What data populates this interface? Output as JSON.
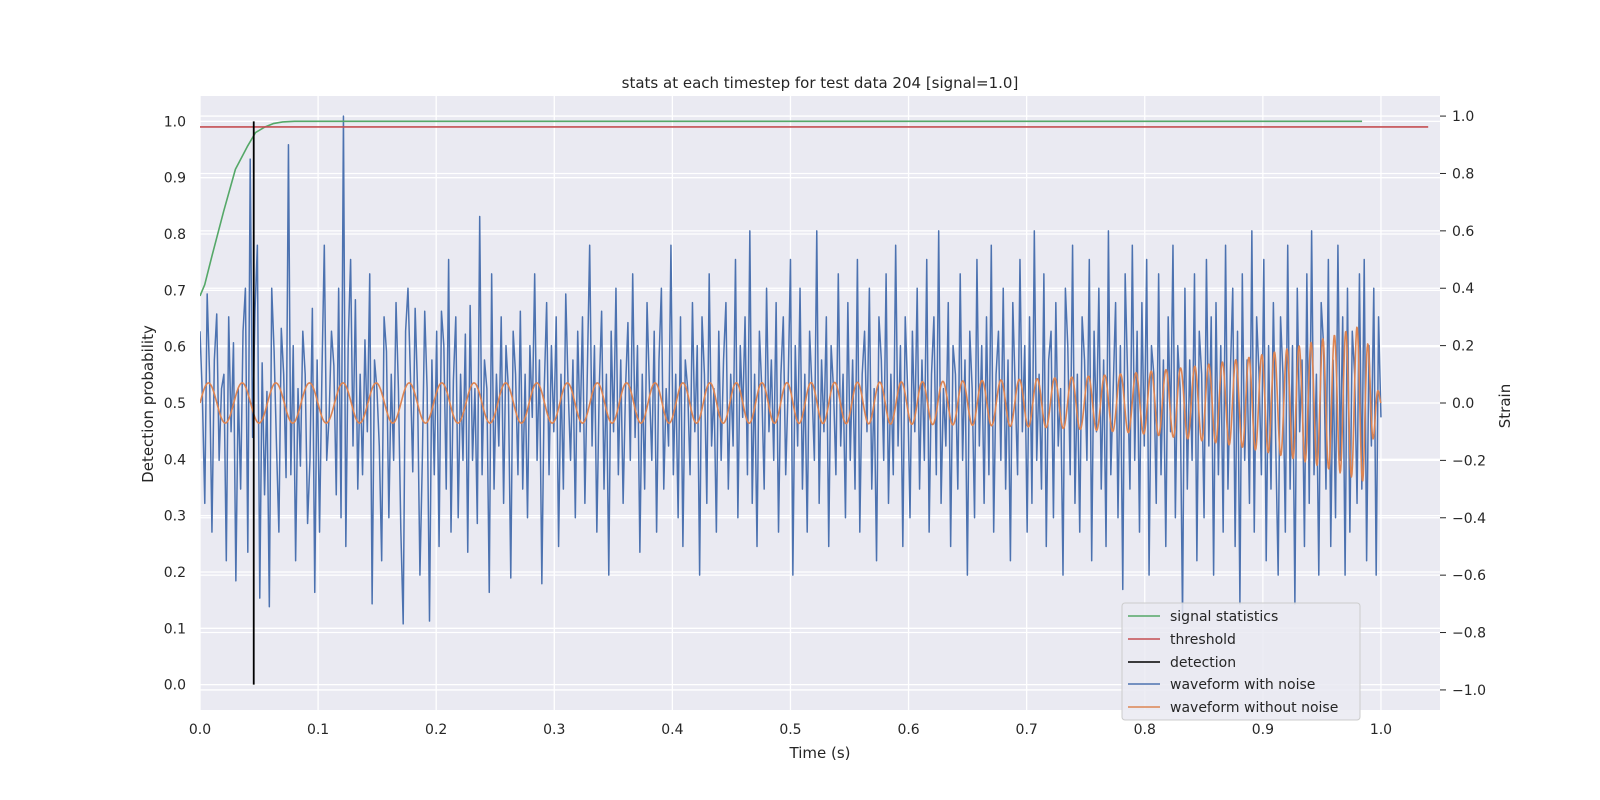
{
  "chart_data": {
    "type": "line",
    "title": "stats at each timestep for test data 204 [signal=1.0]",
    "xlabel": "Time (s)",
    "ylabel_left": "Detection probability",
    "ylabel_right": "Strain",
    "xlim": [
      0.0,
      1.05
    ],
    "ylim_left": [
      -0.045,
      1.045
    ],
    "ylim_right": [
      -1.07,
      1.07
    ],
    "x_ticks": [
      "0.0",
      "0.1",
      "0.2",
      "0.3",
      "0.4",
      "0.5",
      "0.6",
      "0.7",
      "0.8",
      "0.9",
      "1.0"
    ],
    "y_ticks_left": [
      "0.0",
      "0.1",
      "0.2",
      "0.3",
      "0.4",
      "0.5",
      "0.6",
      "0.7",
      "0.8",
      "0.9",
      "1.0"
    ],
    "y_ticks_right": [
      "−1.0",
      "−0.8",
      "−0.6",
      "−0.4",
      "−0.2",
      "0.0",
      "0.2",
      "0.4",
      "0.6",
      "0.8",
      "1.0"
    ],
    "grid": true,
    "legend_position": "lower-right",
    "series": [
      {
        "name": "signal statistics",
        "axis": "left",
        "color": "#55a868",
        "x": [
          0.0,
          0.004,
          0.01,
          0.02,
          0.03,
          0.04,
          0.047,
          0.055,
          0.062,
          0.07,
          0.08,
          0.1,
          0.2,
          0.4,
          0.6,
          0.8,
          0.984
        ],
        "y": [
          0.69,
          0.71,
          0.76,
          0.84,
          0.915,
          0.955,
          0.98,
          0.99,
          0.996,
          0.999,
          1.0,
          1.0,
          1.0,
          1.0,
          1.0,
          1.0,
          1.0
        ]
      },
      {
        "name": "threshold",
        "axis": "left",
        "color": "#c44e52",
        "x": [
          0.0,
          1.04
        ],
        "y": [
          0.99,
          0.99
        ]
      },
      {
        "name": "detection",
        "axis": "left",
        "color": "#000000",
        "x": [
          0.0455,
          0.0455
        ],
        "y": [
          0.0,
          1.0
        ]
      },
      {
        "name": "waveform with noise",
        "axis": "right",
        "color": "#4c72b0",
        "x_start": 0.0,
        "x_end": 1.0,
        "y": [
          0.25,
          0.02,
          -0.35,
          0.38,
          0.1,
          -0.45,
          0.15,
          0.31,
          -0.2,
          0.05,
          0.1,
          -0.55,
          0.3,
          -0.1,
          0.21,
          -0.62,
          0.05,
          -0.3,
          0.25,
          0.4,
          -0.52,
          0.85,
          -0.12,
          0.32,
          0.55,
          -0.68,
          0.14,
          -0.32,
          0.04,
          -0.71,
          0.4,
          0.18,
          -0.15,
          -0.45,
          0.26,
          0.1,
          -0.26,
          0.9,
          -0.25,
          0.2,
          -0.55,
          0.05,
          -0.22,
          0.25,
          0.1,
          -0.42,
          -0.2,
          0.33,
          -0.66,
          0.15,
          -0.45,
          0.1,
          0.55,
          -0.2,
          -0.05,
          0.25,
          0.13,
          -0.32,
          0.4,
          -0.4,
          1.0,
          -0.5,
          0.21,
          0.5,
          -0.15,
          0.36,
          -0.3,
          0.1,
          -0.25,
          0.22,
          -0.1,
          0.45,
          -0.7,
          0.15,
          0.05,
          -0.15,
          -0.55,
          0.3,
          0.18,
          -0.4,
          0.1,
          -0.2,
          0.35,
          0.05,
          -0.44,
          -0.77,
          0.25,
          0.4,
          0.1,
          -0.24,
          0.33,
          0.05,
          -0.6,
          -0.2,
          0.32,
          0.05,
          -0.76,
          0.15,
          -0.25,
          0.25,
          -0.5,
          0.32,
          0.2,
          -0.3,
          0.5,
          -0.45,
          0.08,
          0.3,
          -0.4,
          0.1,
          -0.2,
          0.24,
          -0.52,
          0.34,
          -0.2,
          0.05,
          -0.42,
          0.65,
          -0.25,
          0.15,
          0.05,
          -0.66,
          0.45,
          -0.3,
          0.1,
          -0.15,
          0.3,
          -0.35,
          0.2,
          0.05,
          -0.61,
          0.25,
          0.1,
          -0.25,
          0.32,
          -0.3,
          0.1,
          -0.4,
          0.2,
          -0.05,
          0.45,
          -0.2,
          0.15,
          -0.63,
          0.05,
          0.35,
          -0.25,
          0.2,
          -0.1,
          0.3,
          -0.5,
          0.1,
          -0.3,
          0.38,
          0.05,
          -0.2,
          0.15,
          -0.4,
          0.25,
          -0.1,
          0.3,
          -0.35,
          0.1,
          0.55,
          -0.15,
          0.2,
          -0.45,
          0.05,
          0.32,
          -0.3,
          0.1,
          -0.6,
          0.25,
          -0.1,
          0.4,
          -0.25,
          0.15,
          -0.35,
          0.05,
          0.28,
          -0.2,
          0.45,
          -0.12,
          0.2,
          -0.52,
          0.1,
          -0.3,
          0.35,
          0.05,
          -0.2,
          0.25,
          -0.45,
          0.15,
          0.4,
          -0.3,
          0.05,
          -0.15,
          0.55,
          -0.25,
          0.1,
          -0.4,
          0.3,
          -0.5,
          0.15,
          0.05,
          -0.25,
          0.35,
          -0.1,
          0.2,
          -0.6,
          0.3,
          0.1,
          -0.35,
          0.45,
          -0.15,
          0.05,
          -0.45,
          0.25,
          -0.2,
          0.15,
          0.35,
          -0.3,
          0.1,
          -0.15,
          0.5,
          -0.4,
          0.2,
          -0.05,
          0.3,
          -0.25,
          0.6,
          -0.35,
          0.1,
          -0.5,
          0.25,
          0.05,
          -0.3,
          0.4,
          -0.1,
          0.15,
          -0.2,
          0.35,
          -0.45,
          0.1,
          0.3,
          -0.25,
          0.05,
          0.5,
          -0.6,
          0.2,
          -0.15,
          0.4,
          -0.3,
          0.1,
          -0.45,
          0.25,
          0.05,
          -0.2,
          0.6,
          -0.35,
          0.15,
          -0.1,
          0.3,
          -0.5,
          0.2,
          0.05,
          -0.25,
          0.45,
          -0.15,
          0.1,
          -0.4,
          0.35,
          -0.2,
          0.15,
          -0.3,
          0.5,
          -0.45,
          0.1,
          0.25,
          -0.1,
          0.4,
          -0.3,
          0.05,
          -0.55,
          0.3,
          0.15,
          -0.2,
          0.45,
          -0.35,
          0.1,
          -0.25,
          0.55,
          -0.15,
          0.2,
          -0.5,
          0.3,
          0.05,
          -0.4,
          0.25,
          -0.1,
          0.4,
          -0.3,
          0.15,
          -0.2,
          0.5,
          -0.45,
          0.1,
          0.3,
          -0.25,
          0.6,
          -0.35,
          0.05,
          -0.15,
          0.35,
          -0.5,
          0.2,
          0.1,
          -0.3,
          0.45,
          -0.2,
          0.15,
          -0.6,
          0.25,
          0.05,
          -0.4,
          0.5,
          -0.15,
          0.2,
          -0.35,
          0.3,
          -0.25,
          0.55,
          -0.45,
          0.1,
          0.25,
          -0.2,
          0.4,
          -0.3,
          0.15,
          -0.55,
          0.35,
          0.05,
          -0.25,
          0.5,
          -0.1,
          0.2,
          -0.45,
          0.3,
          -0.35,
          0.6,
          -0.2,
          0.1,
          -0.3,
          0.45,
          -0.5,
          0.15,
          0.25,
          -0.4,
          0.35,
          -0.15,
          0.05,
          -0.6,
          0.4,
          0.2,
          -0.25,
          0.55,
          -0.35,
          0.1,
          -0.45,
          0.3,
          0.15,
          -0.2,
          0.5,
          -0.55,
          0.25,
          -0.1,
          0.4,
          -0.3,
          0.15,
          -0.5,
          0.6,
          -0.25,
          0.05,
          0.35,
          -0.4,
          0.2,
          -0.65,
          0.45,
          0.1,
          -0.3,
          0.55,
          -0.2,
          0.25,
          -0.45,
          0.35,
          -0.15,
          0.5,
          -0.6,
          0.2,
          0.1,
          -0.35,
          0.45,
          -0.25,
          0.15,
          -0.5,
          0.3,
          -0.1,
          0.55,
          -0.4,
          0.2,
          0.05,
          -0.75,
          0.4,
          -0.3,
          0.15,
          -0.2,
          0.45,
          -0.55,
          0.25,
          0.1,
          -0.4,
          0.5,
          -0.15,
          0.3,
          -0.6,
          0.35,
          -0.25,
          0.2,
          -0.45,
          0.55,
          -0.3,
          0.1,
          0.4,
          -0.5,
          0.25,
          -0.7,
          0.45,
          -0.2,
          0.15,
          -0.35,
          0.6,
          -0.45,
          0.3,
          0.1,
          -0.25,
          0.5,
          -0.55,
          0.2,
          -0.3,
          0.35,
          -0.15,
          -0.6,
          0.3,
          0.1,
          -0.45,
          0.55,
          -0.3,
          0.2,
          -0.7,
          0.4,
          -0.1,
          0.15,
          -0.5,
          0.45,
          -0.35,
          0.6,
          -0.25,
          0.1,
          -0.6,
          0.35,
          0.2,
          -0.3,
          0.5,
          -0.5,
          0.15,
          -0.4,
          0.55,
          -0.2,
          0.3,
          -0.6,
          0.4,
          -0.45,
          0.25,
          0.1,
          -0.35,
          0.45,
          -0.3,
          0.5,
          -0.55,
          0.2,
          -0.15,
          0.4,
          -0.6,
          0.3,
          -0.05
        ]
      },
      {
        "name": "waveform without noise",
        "axis": "right",
        "color": "#dd8452",
        "x_start": 0.0,
        "x_end": 1.0,
        "amplitude_start": 0.07,
        "amplitude_end": 0.3,
        "frequency_start_hz": 35,
        "frequency_end_hz": 110
      }
    ]
  }
}
